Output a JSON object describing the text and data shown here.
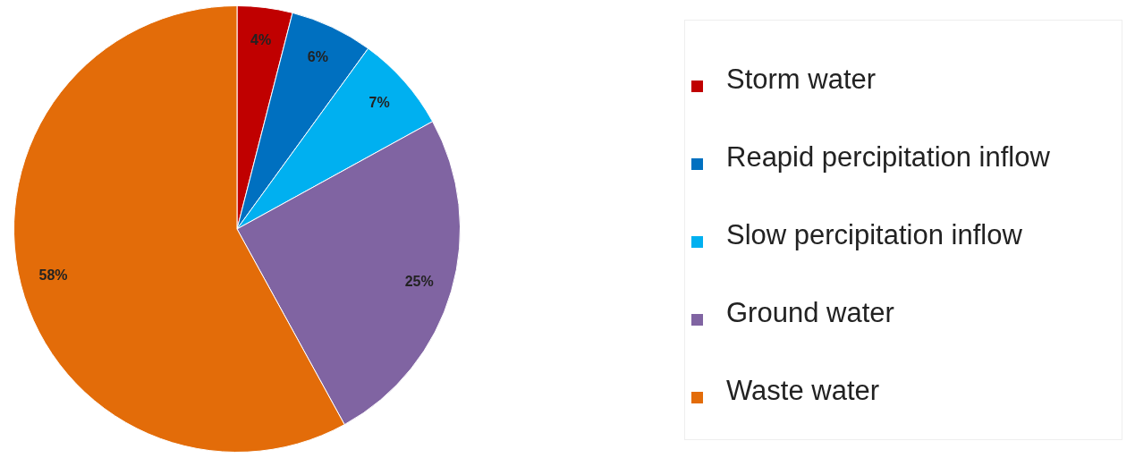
{
  "chart_data": {
    "type": "pie",
    "categories": [
      "Storm water",
      "Reapid percipitation inflow",
      "Slow percipitation inflow",
      "Ground water",
      "Waste water"
    ],
    "values": [
      4,
      6,
      7,
      25,
      58
    ],
    "colors": [
      "#c00000",
      "#0070c0",
      "#00b0f0",
      "#8064a2",
      "#e36c09"
    ],
    "value_labels": [
      "4%",
      "6%",
      "7%",
      "25%",
      "58%"
    ],
    "legend": "right"
  }
}
